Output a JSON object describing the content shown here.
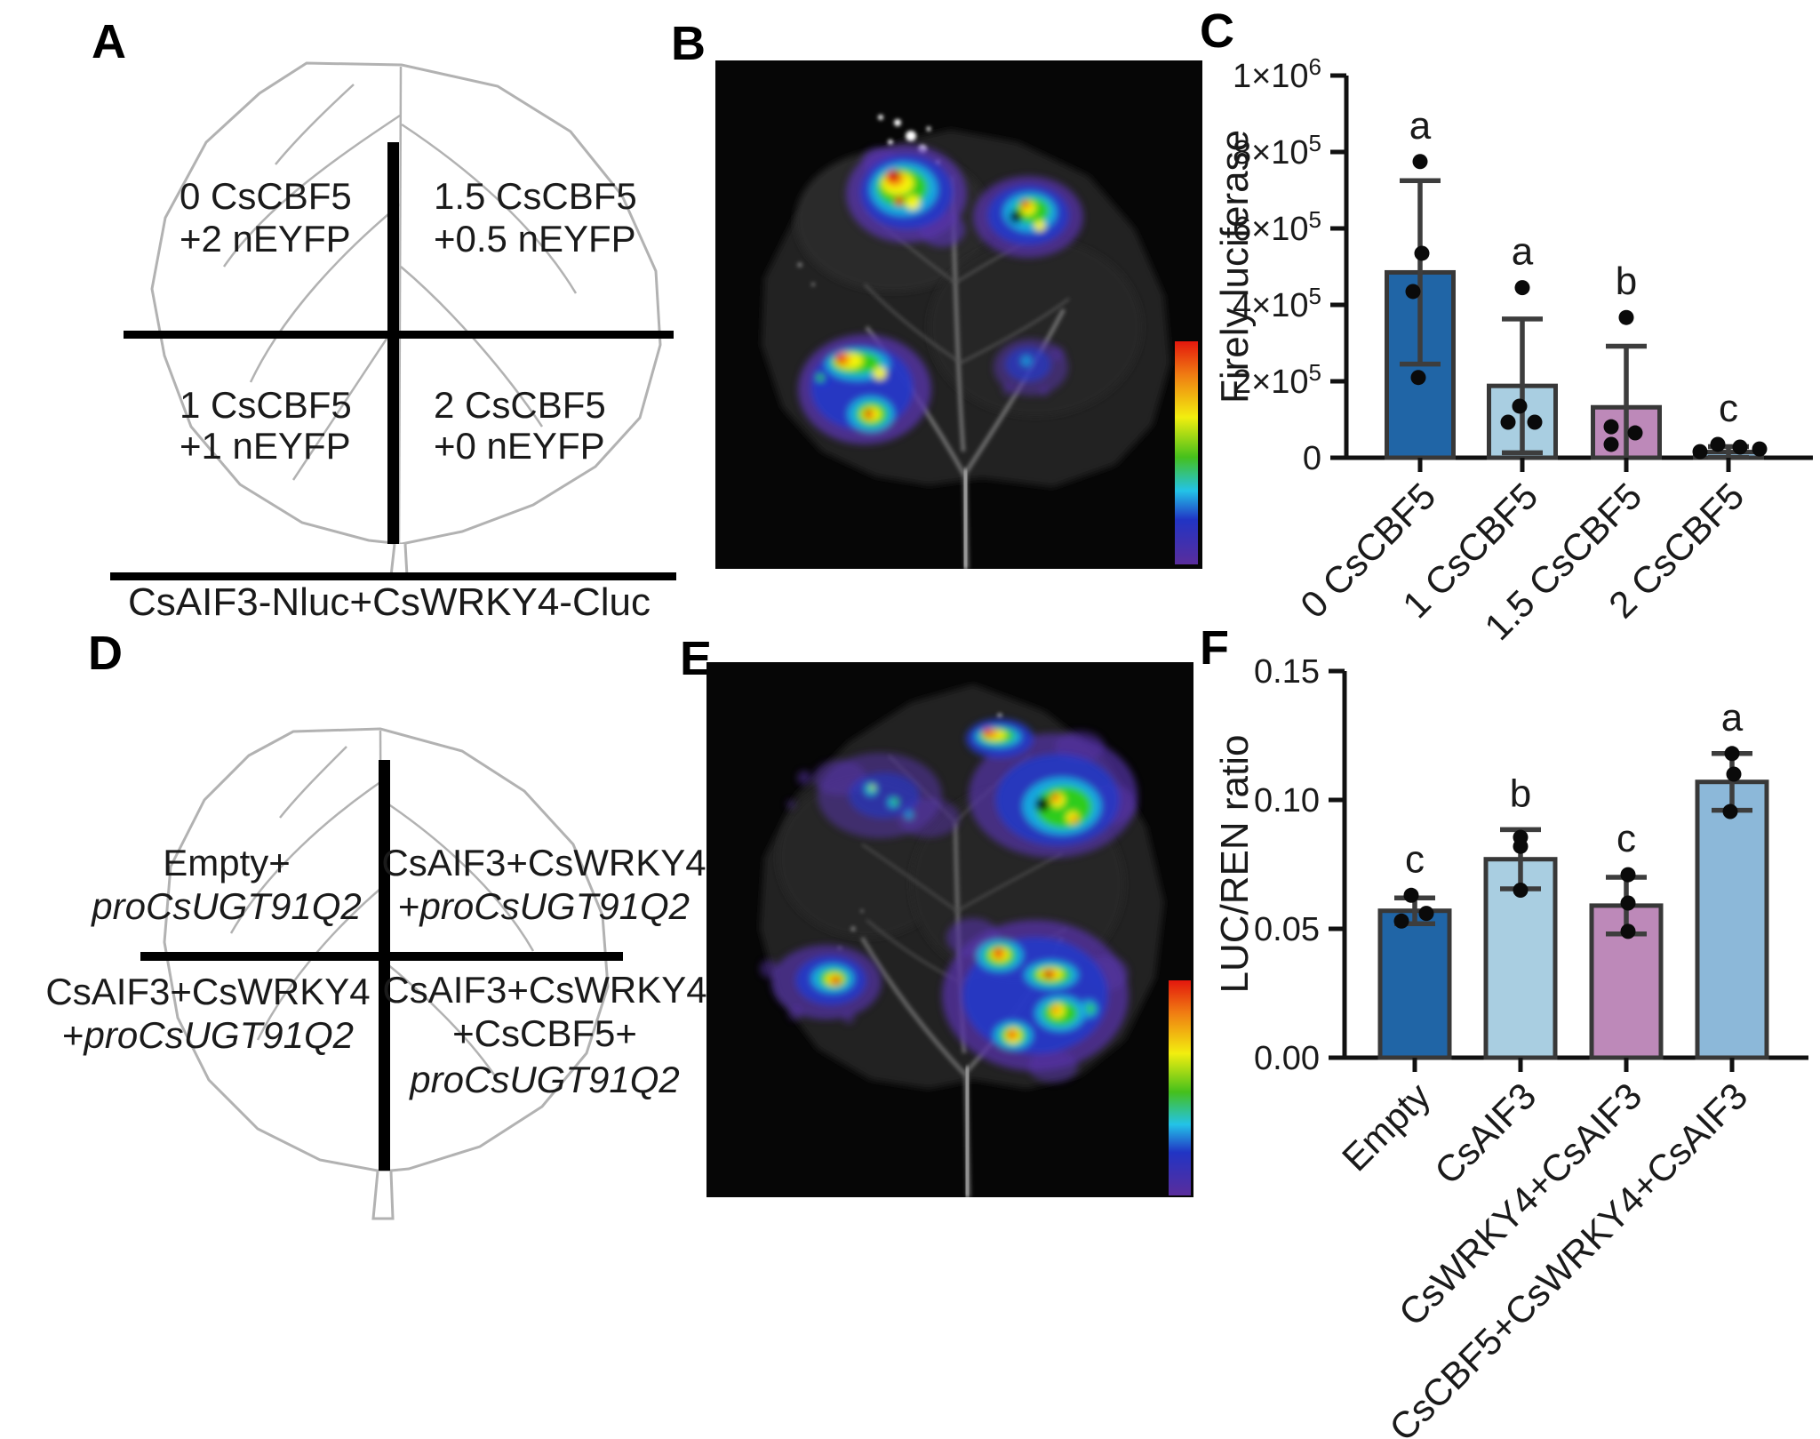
{
  "figure": {
    "background": "#ffffff"
  },
  "colors": {
    "bar_dark_blue": "#2065a6",
    "bar_light_blue": "#a9cee1",
    "bar_mauve": "#bd89b9",
    "bar_medium_blue": "#8cb8d9",
    "bar_border": "#383838",
    "error_bar": "#3d3d3d",
    "axis": "#111111",
    "leaf_outline": "#b2b2b2",
    "photo_background": "#060606",
    "colorbar_stops": [
      "#e3170d",
      "#f07c12",
      "#f2ee0f",
      "#45c01c",
      "#23c3e8",
      "#2134c4",
      "#5a2d9c"
    ]
  },
  "panel_a": {
    "label": "A",
    "quadrants": [
      {
        "lines": [
          [
            [
              "0 CsCBF5",
              0
            ]
          ],
          [
            [
              "+2 nEYFP",
              0
            ]
          ]
        ]
      },
      {
        "lines": [
          [
            [
              "1.5 CsCBF5",
              0
            ]
          ],
          [
            [
              "+0.5 nEYFP",
              0
            ]
          ]
        ]
      },
      {
        "lines": [
          [
            [
              "1 CsCBF5",
              0
            ]
          ],
          [
            [
              "+1 nEYFP",
              0
            ]
          ]
        ]
      },
      {
        "lines": [
          [
            [
              "2 CsCBF5",
              0
            ]
          ],
          [
            [
              "+0 nEYFP",
              0
            ]
          ]
        ]
      }
    ],
    "caption": "CsAIF3-Nluc+CsWRKY4-Cluc"
  },
  "panel_b": {
    "label": "B"
  },
  "panel_d": {
    "label": "D",
    "quadrants": [
      {
        "lines": [
          [
            [
              "Empty+",
              0
            ]
          ],
          [
            [
              "proCsUGT91Q2",
              1
            ]
          ]
        ]
      },
      {
        "lines": [
          [
            [
              "CsAIF3+CsWRKY4",
              0
            ]
          ],
          [
            [
              "+",
              0
            ],
            [
              "proCsUGT91Q2",
              1
            ]
          ]
        ]
      },
      {
        "lines": [
          [
            [
              "CsAIF3+CsWRKY4",
              0
            ]
          ],
          [
            [
              "+",
              0
            ],
            [
              "proCsUGT91Q2",
              1
            ]
          ]
        ]
      },
      {
        "lines": [
          [
            [
              "CsAIF3+CsWRKY4",
              0
            ]
          ],
          [
            [
              "+CsCBF5+",
              0
            ]
          ],
          [
            [
              "proCsUGT91Q2",
              1
            ]
          ]
        ]
      }
    ]
  },
  "panel_e": {
    "label": "E"
  },
  "chart_data": [
    {
      "id": "chartC",
      "panel_label": "C",
      "type": "bar",
      "title": "",
      "xlabel": "",
      "ylabel": "Firely luciferase",
      "categories": [
        "0 CsCBF5",
        "1 CsCBF5",
        "1.5 CsCBF5",
        "2 CsCBF5"
      ],
      "values": [
        485000,
        188000,
        132000,
        15000
      ],
      "sd": [
        240000,
        175000,
        160000,
        14000
      ],
      "points": [
        [
          [
            775000,
            0
          ],
          [
            535000,
            2
          ],
          [
            435000,
            -8
          ],
          [
            210000,
            -2
          ]
        ],
        [
          [
            445000,
            0
          ],
          [
            135000,
            -3
          ],
          [
            93000,
            -16
          ],
          [
            93000,
            14
          ]
        ],
        [
          [
            367000,
            0
          ],
          [
            81000,
            -17
          ],
          [
            65000,
            10
          ],
          [
            35000,
            -17
          ]
        ],
        [
          [
            16000,
            -32
          ],
          [
            35000,
            -12
          ],
          [
            28000,
            13
          ],
          [
            23000,
            35
          ]
        ]
      ],
      "letters": [
        "a",
        "a",
        "b",
        "c"
      ],
      "bar_colors": [
        "#2065a6",
        "#a9cee1",
        "#bd89b9",
        "#8cb8d9"
      ],
      "ylim": [
        0,
        1000000
      ],
      "yticks": [
        0,
        200000,
        400000,
        600000,
        800000,
        1000000
      ],
      "ytick_labels": [
        "0",
        "2×10^5",
        "4×10^5",
        "6×10^5",
        "8×10^5",
        "1×10^6"
      ],
      "grid": false,
      "legend": null
    },
    {
      "id": "chartF",
      "panel_label": "F",
      "type": "bar",
      "title": "",
      "xlabel": "",
      "ylabel": "LUC/REN ratio",
      "categories": [
        "Empty",
        "CsAIF3",
        "CsWRKY4+CsAIF3",
        "CsCBF5+CsWRKY4+CsAIF3"
      ],
      "values": [
        0.057,
        0.077,
        0.059,
        0.107
      ],
      "sd": [
        0.005,
        0.0115,
        0.011,
        0.011
      ],
      "points": [
        [
          [
            0.063,
            -4
          ],
          [
            0.056,
            13
          ],
          [
            0.053,
            -15
          ]
        ],
        [
          [
            0.0855,
            0
          ],
          [
            0.082,
            0
          ],
          [
            0.065,
            0
          ]
        ],
        [
          [
            0.071,
            2
          ],
          [
            0.06,
            2
          ],
          [
            0.049,
            2
          ]
        ],
        [
          [
            0.118,
            0
          ],
          [
            0.11,
            2
          ],
          [
            0.0955,
            -2
          ]
        ]
      ],
      "letters": [
        "c",
        "b",
        "c",
        "a"
      ],
      "bar_colors": [
        "#2065a6",
        "#a9cee1",
        "#bd89b9",
        "#8cb8d9"
      ],
      "ylim": [
        0,
        0.15
      ],
      "yticks": [
        0,
        0.05,
        0.1,
        0.15
      ],
      "ytick_labels": [
        "0.00",
        "0.05",
        "0.10",
        "0.15"
      ],
      "grid": false,
      "legend": null
    }
  ]
}
